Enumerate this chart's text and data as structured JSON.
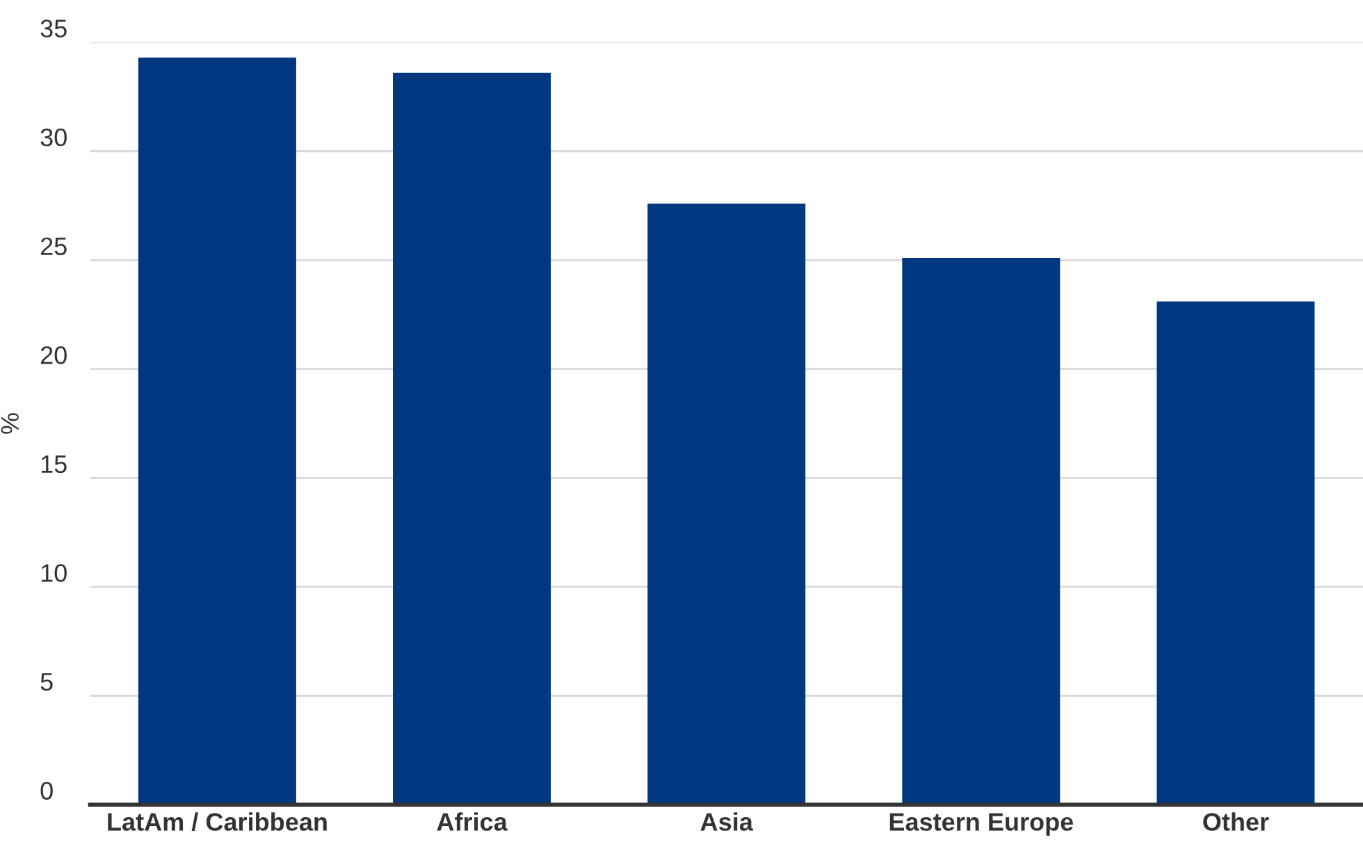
{
  "chart_data": {
    "type": "bar",
    "ylabel": "%",
    "categories": [
      "LatAm / Caribbean",
      "Africa",
      "Asia",
      "Eastern Europe",
      "Other"
    ],
    "values": [
      34.3,
      33.6,
      27.6,
      25.1,
      23.1
    ],
    "color": "#003781",
    "ylim": [
      0,
      35
    ],
    "yticks": [
      0,
      5,
      10,
      15,
      20,
      25,
      30,
      35
    ],
    "grid": "y",
    "legend": false
  }
}
